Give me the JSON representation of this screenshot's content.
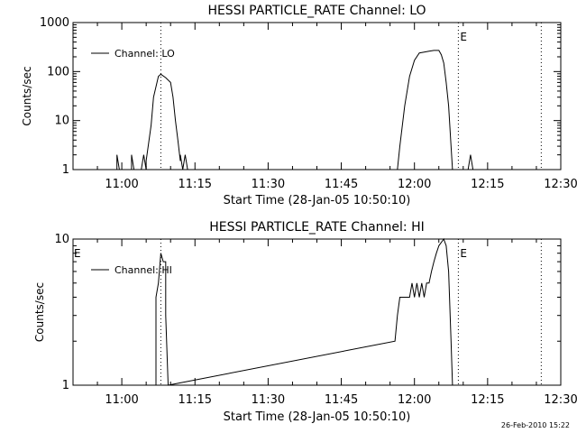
{
  "footer_timestamp": "26-Feb-2010 15:22",
  "chart_data": [
    {
      "type": "line",
      "title": "HESSI PARTICLE_RATE Channel: LO",
      "xlabel": "Start Time (28-Jan-05 10:50:10)",
      "ylabel": "Counts/sec",
      "yscale": "log",
      "xlim": [
        "10:50",
        "12:30"
      ],
      "ylim": [
        1,
        1000
      ],
      "xticks": [
        "11:00",
        "11:15",
        "11:30",
        "11:45",
        "12:00",
        "12:15",
        "12:30"
      ],
      "yticks": [
        "1",
        "10",
        "100",
        "1000"
      ],
      "legend": {
        "label": "Channel: LO",
        "placement": "top-left"
      },
      "markers": [
        {
          "time": "11:08",
          "label": ""
        },
        {
          "time": "12:09",
          "label": "E"
        },
        {
          "time": "12:26",
          "label": ""
        }
      ],
      "series": [
        {
          "name": "Channel: LO",
          "points": [
            [
              "10:59",
              1
            ],
            [
              "10:59",
              2
            ],
            [
              "10:59.5",
              1
            ],
            [
              "11:02",
              1
            ],
            [
              "11:02",
              2
            ],
            [
              "11:02.5",
              1
            ],
            [
              "11:04",
              1
            ],
            [
              "11:04.5",
              2
            ],
            [
              "11:05",
              1
            ],
            [
              "11:05",
              1.5
            ],
            [
              "11:06",
              8
            ],
            [
              "11:06.5",
              30
            ],
            [
              "11:07.5",
              80
            ],
            [
              "11:08",
              88
            ],
            [
              "11:09",
              75
            ],
            [
              "11:10",
              60
            ],
            [
              "11:10.5",
              30
            ],
            [
              "11:11",
              10
            ],
            [
              "11:11.5",
              4
            ],
            [
              "11:12",
              1.5
            ],
            [
              "11:12",
              2
            ],
            [
              "11:12.5",
              1
            ],
            [
              "11:13",
              2
            ],
            [
              "11:13.5",
              1
            ],
            [
              "11:56.5",
              1
            ],
            [
              "11:57",
              3
            ],
            [
              "11:58",
              20
            ],
            [
              "11:59",
              80
            ],
            [
              "12:00",
              170
            ],
            [
              "12:01",
              240
            ],
            [
              "12:02",
              250
            ],
            [
              "12:03",
              260
            ],
            [
              "12:04",
              270
            ],
            [
              "12:05",
              270
            ],
            [
              "12:05.5",
              220
            ],
            [
              "12:06",
              150
            ],
            [
              "12:06.5",
              60
            ],
            [
              "12:07",
              20
            ],
            [
              "12:07.5",
              3
            ],
            [
              "12:07.8",
              1
            ],
            [
              "12:11",
              1
            ],
            [
              "12:11.5",
              2
            ],
            [
              "12:12",
              1
            ]
          ]
        }
      ]
    },
    {
      "type": "line",
      "title": "HESSI PARTICLE_RATE Channel: HI",
      "xlabel": "Start Time (28-Jan-05 10:50:10)",
      "ylabel": "Counts/sec",
      "yscale": "log",
      "xlim": [
        "10:50",
        "12:30"
      ],
      "ylim": [
        1,
        10
      ],
      "xticks": [
        "11:00",
        "11:15",
        "11:30",
        "11:45",
        "12:00",
        "12:15",
        "12:30"
      ],
      "yticks": [
        "1",
        "10"
      ],
      "legend": {
        "label": "Channel: HI",
        "placement": "top-left"
      },
      "markers": [
        {
          "time": "10:50",
          "label": "E"
        },
        {
          "time": "11:08",
          "label": ""
        },
        {
          "time": "12:09",
          "label": "E"
        },
        {
          "time": "12:26",
          "label": ""
        }
      ],
      "series": [
        {
          "name": "Channel: HI",
          "points": [
            [
              "11:07",
              1
            ],
            [
              "11:07",
              4
            ],
            [
              "11:07.5",
              5
            ],
            [
              "11:08",
              8
            ],
            [
              "11:08.5",
              7
            ],
            [
              "11:09",
              7
            ],
            [
              "11:09",
              3
            ],
            [
              "11:09.5",
              1
            ],
            [
              "11:56",
              2
            ],
            [
              "11:56.5",
              3
            ],
            [
              "11:57",
              4
            ],
            [
              "11:58",
              4
            ],
            [
              "11:59",
              4
            ],
            [
              "11:59.5",
              5
            ],
            [
              "12:00",
              4
            ],
            [
              "12:00.5",
              5
            ],
            [
              "12:01",
              4
            ],
            [
              "12:01.5",
              5
            ],
            [
              "12:02",
              4
            ],
            [
              "12:02.5",
              5
            ],
            [
              "12:03",
              5
            ],
            [
              "12:03.5",
              6
            ],
            [
              "12:04",
              7
            ],
            [
              "12:04.5",
              8
            ],
            [
              "12:05",
              9
            ],
            [
              "12:06",
              10
            ],
            [
              "12:06.5",
              9
            ],
            [
              "12:07",
              6
            ],
            [
              "12:07.5",
              2
            ],
            [
              "12:07.8",
              1
            ]
          ]
        }
      ]
    }
  ]
}
